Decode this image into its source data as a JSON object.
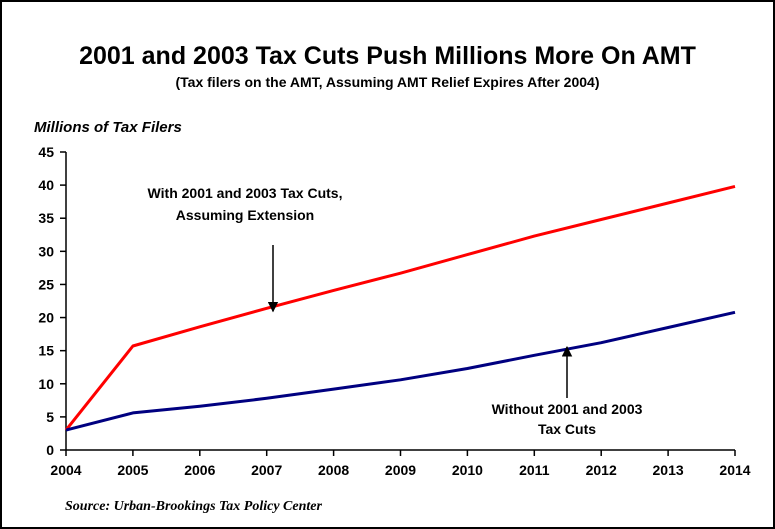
{
  "chart_data": {
    "type": "line",
    "title": "2001 and 2003 Tax Cuts Push Millions More On AMT",
    "subtitle": "(Tax filers on the AMT, Assuming AMT Relief Expires After 2004)",
    "xlabel": "",
    "ylabel": "Millions of Tax Filers",
    "x": [
      2004,
      2005,
      2006,
      2007,
      2008,
      2009,
      2010,
      2011,
      2012,
      2013,
      2014
    ],
    "xlim": [
      2004,
      2014
    ],
    "ylim": [
      0,
      45
    ],
    "yticks": [
      0,
      5,
      10,
      15,
      20,
      25,
      30,
      35,
      40,
      45
    ],
    "grid": false,
    "legend": "none",
    "series": [
      {
        "name": "With 2001 and 2003 Tax Cuts, Assuming Extension",
        "color": "#ff0000",
        "values": [
          3.0,
          15.7,
          18.6,
          21.4,
          24.1,
          26.7,
          29.5,
          32.3,
          34.8,
          37.3,
          39.8
        ]
      },
      {
        "name": "Without 2001 and 2003 Tax Cuts",
        "color": "#000080",
        "values": [
          3.0,
          5.6,
          6.6,
          7.8,
          9.2,
          10.6,
          12.3,
          14.3,
          16.2,
          18.5,
          20.8
        ]
      }
    ],
    "annotations": [
      {
        "lines": [
          "With 2001 and 2003 Tax Cuts,",
          "Assuming Extension"
        ],
        "arrow_target": {
          "x": 2007,
          "y": 21.4
        }
      },
      {
        "lines": [
          "Without 2001 and 2003",
          "Tax Cuts"
        ],
        "arrow_target": {
          "x": 2011.5,
          "y": 15.1
        }
      }
    ],
    "source": "Source: Urban-Brookings Tax Policy Center"
  }
}
